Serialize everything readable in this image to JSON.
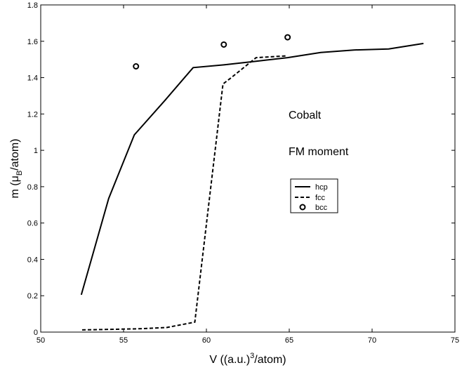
{
  "chart_data": {
    "type": "line",
    "xlabel": {
      "pre": "V ((a.u.)",
      "sup": "3",
      "post": "/atom)"
    },
    "ylabel": {
      "pre": "m (",
      "greek": "μ",
      "sub": "B",
      "post": "/atom)"
    },
    "xlim": [
      50,
      75
    ],
    "ylim": [
      0,
      1.8
    ],
    "xticks": [
      50,
      55,
      60,
      65,
      70,
      75
    ],
    "yticks": [
      0,
      0.2,
      0.4,
      0.6,
      0.8,
      1,
      1.2,
      1.4,
      1.6,
      1.8
    ],
    "grid": false,
    "legend_position": "center-right",
    "annotations": [
      "Cobalt",
      "FM moment"
    ],
    "series": [
      {
        "name": "hcp",
        "style": "solid",
        "x": [
          52.45,
          54.1,
          55.65,
          57.5,
          59.2,
          61.05,
          63.0,
          64.9,
          66.9,
          68.9,
          71.0,
          73.1
        ],
        "y": [
          0.205,
          0.735,
          1.085,
          1.275,
          1.455,
          1.47,
          1.49,
          1.51,
          1.538,
          1.552,
          1.558,
          1.588
        ]
      },
      {
        "name": "fcc",
        "style": "dashed",
        "x": [
          52.5,
          54.2,
          55.9,
          57.6,
          59.3,
          61.0,
          61.5,
          63.0,
          64.9
        ],
        "y": [
          0.012,
          0.015,
          0.018,
          0.025,
          0.055,
          1.365,
          1.4,
          1.51,
          1.52
        ]
      },
      {
        "name": "bcc",
        "style": "markers",
        "x": [
          55.75,
          61.05,
          64.9
        ],
        "y": [
          1.462,
          1.582,
          1.622
        ]
      }
    ]
  }
}
